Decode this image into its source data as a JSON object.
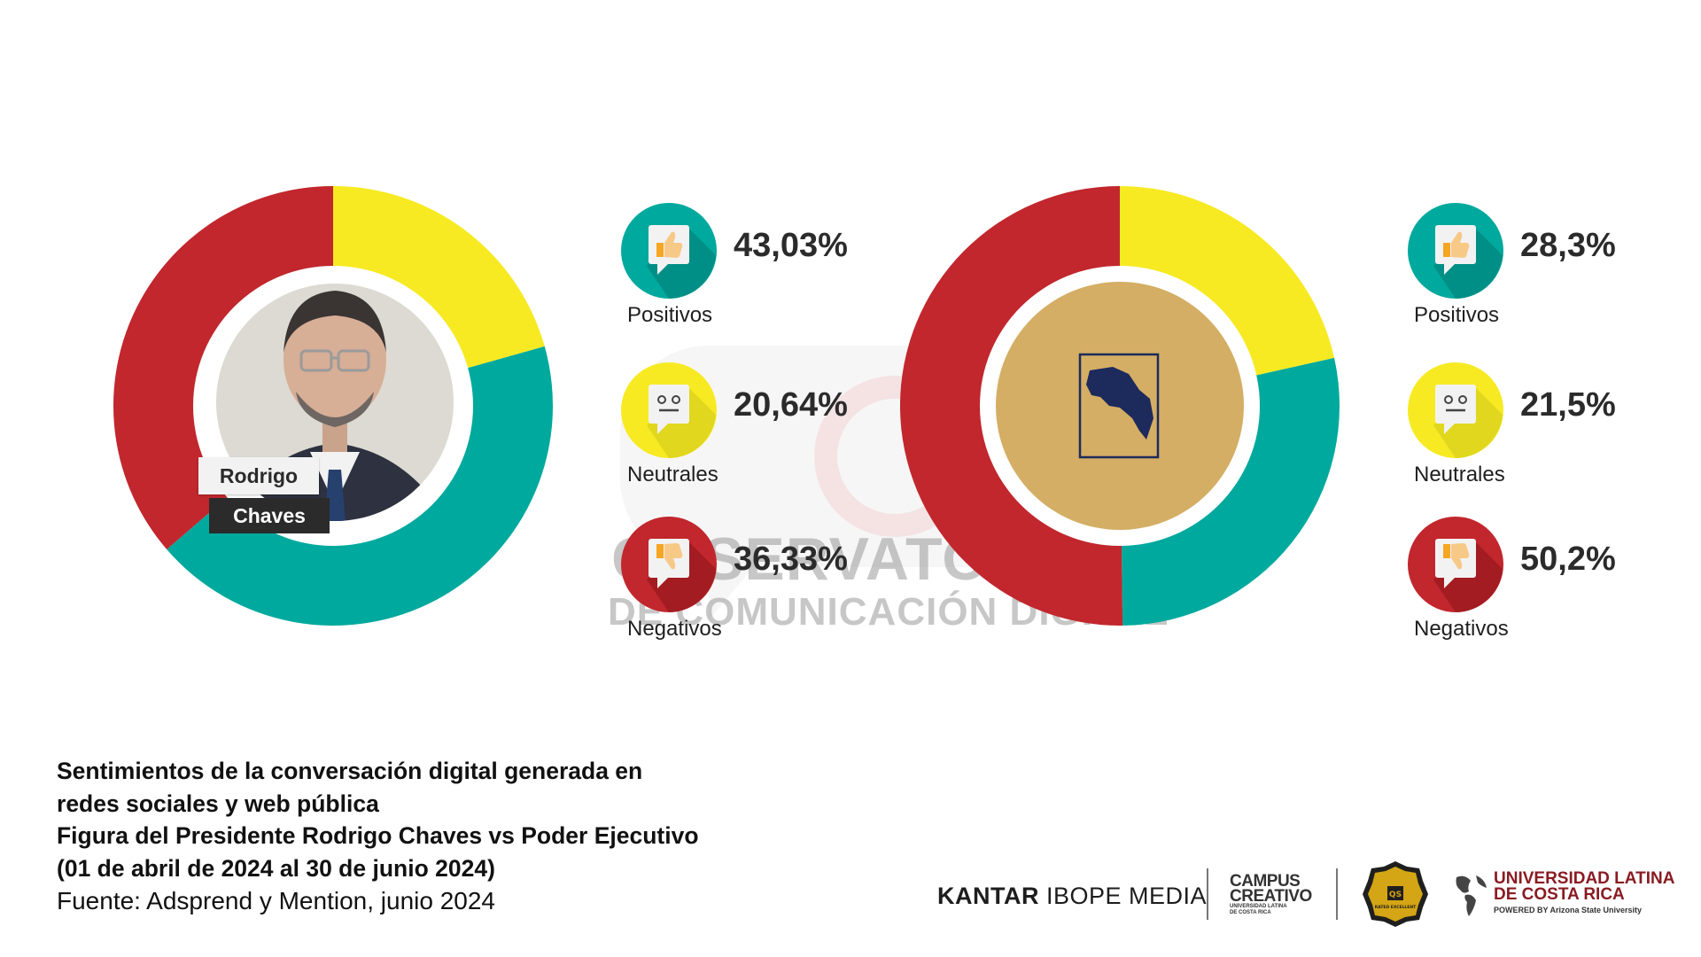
{
  "chart_data": [
    {
      "type": "pie",
      "categories": [
        "Positivos",
        "Neutrales",
        "Negativos"
      ],
      "values": [
        43.03,
        20.64,
        36.33
      ],
      "value_labels": [
        "43,03%",
        "20,64%",
        "36,33%"
      ],
      "center_label": [
        "Rodrigo",
        "Chaves"
      ]
    },
    {
      "type": "pie",
      "categories": [
        "Positivos",
        "Neutrales",
        "Negativos"
      ],
      "values": [
        28.3,
        21.5,
        50.2
      ],
      "value_labels": [
        "28,3%",
        "21,5%",
        "50,2%"
      ]
    }
  ],
  "colors": {
    "positivos": "#00a99d",
    "neutrales": "#f7ea23",
    "negativos": "#c1272d",
    "positivos_icon_shadow": "#007f76",
    "neutrales_icon_shadow": "#d6cf1d",
    "negativos_icon_shadow": "#8e1519",
    "center_gold": "#d4ae65",
    "map_navy": "#1d2a5c"
  },
  "icons": [
    "thumbs-up-icon",
    "neutral-face-icon",
    "thumbs-down-icon"
  ],
  "watermark": {
    "line1": "OBSERVATORIO",
    "line2": "DE COMUNICACIÓN DIGITAL"
  },
  "caption": {
    "line1": "Sentimientos de la conversación digital generada en",
    "line2": "redes sociales y web pública",
    "line3": "Figura del Presidente Rodrigo Chaves vs Poder Ejecutivo",
    "line4": "(01 de abril de 2024 al 30 de junio 2024)",
    "line5": "Fuente: Adsprend y Mention, junio 2024"
  },
  "logos": {
    "kantar_bold": "KANTAR",
    "kantar_rest": " IBOPE MEDIA",
    "campus_line1": "CAMPUS",
    "campus_line2": "CREATIVO",
    "campus_sub1": "UNIVERSIDAD LATINA",
    "campus_sub2": "DE COSTA RICA",
    "badge_text": "QS",
    "badge_sub": "RATED EXCELLENT",
    "ulatina_line1": "UNIVERSIDAD LATINA",
    "ulatina_line2": "DE COSTA RICA",
    "ulatina_line3": "POWERED BY Arizona State University"
  }
}
